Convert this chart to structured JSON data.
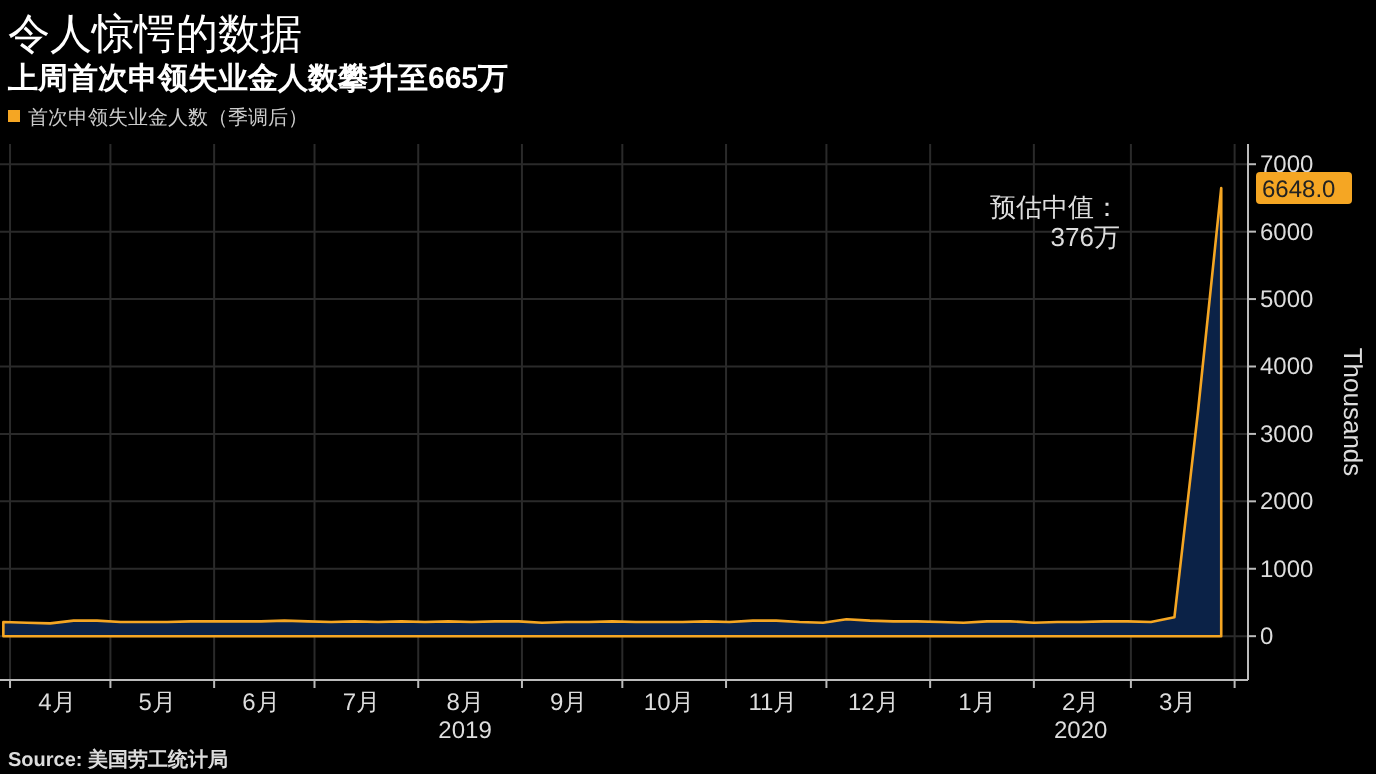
{
  "chart_data": {
    "type": "area",
    "title": "令人惊愕的数据",
    "subtitle": "上周首次申领失业金人数攀升至665万",
    "ylabel": "Thousands",
    "annotations": [
      "预估中值：\n376万",
      "Source: 美国劳工统计局"
    ],
    "x": [
      "2019-03-30",
      "2019-04-06",
      "2019-04-13",
      "2019-04-20",
      "2019-04-27",
      "2019-05-04",
      "2019-05-11",
      "2019-05-18",
      "2019-05-25",
      "2019-06-01",
      "2019-06-08",
      "2019-06-15",
      "2019-06-22",
      "2019-06-29",
      "2019-07-06",
      "2019-07-13",
      "2019-07-20",
      "2019-07-27",
      "2019-08-03",
      "2019-08-10",
      "2019-08-17",
      "2019-08-24",
      "2019-08-31",
      "2019-09-07",
      "2019-09-14",
      "2019-09-21",
      "2019-09-28",
      "2019-10-05",
      "2019-10-12",
      "2019-10-19",
      "2019-10-26",
      "2019-11-02",
      "2019-11-09",
      "2019-11-16",
      "2019-11-23",
      "2019-11-30",
      "2019-12-07",
      "2019-12-14",
      "2019-12-21",
      "2019-12-28",
      "2020-01-04",
      "2020-01-11",
      "2020-01-18",
      "2020-01-25",
      "2020-02-01",
      "2020-02-08",
      "2020-02-15",
      "2020-02-22",
      "2020-02-29",
      "2020-03-07",
      "2020-03-14",
      "2020-03-21",
      "2020-03-28"
    ],
    "series": [
      {
        "name": "首次申领失业金人数（季调后）",
        "color": "#f5a623",
        "values": [
          210,
          200,
          190,
          230,
          230,
          210,
          210,
          210,
          220,
          220,
          220,
          220,
          230,
          220,
          210,
          220,
          210,
          220,
          210,
          220,
          210,
          220,
          220,
          200,
          210,
          210,
          220,
          210,
          210,
          210,
          220,
          210,
          230,
          230,
          210,
          200,
          250,
          230,
          220,
          220,
          210,
          200,
          220,
          220,
          200,
          210,
          210,
          220,
          220,
          210,
          280,
          3310,
          6648
        ],
        "value_labels": [
          null,
          null,
          null,
          null,
          null,
          null,
          null,
          null,
          null,
          null,
          null,
          null,
          null,
          null,
          null,
          null,
          null,
          null,
          null,
          null,
          null,
          null,
          null,
          null,
          null,
          null,
          null,
          null,
          null,
          null,
          null,
          null,
          null,
          null,
          null,
          null,
          null,
          null,
          null,
          null,
          null,
          null,
          null,
          null,
          null,
          null,
          null,
          null,
          null,
          null,
          null,
          null,
          "6648.0"
        ]
      }
    ],
    "xlim": [
      "2019-03-29",
      "2020-04-05"
    ],
    "xticks": [
      {
        "value": "2019-04-01",
        "label": null
      },
      {
        "value": "2019-04-15",
        "label": "4月"
      },
      {
        "value": "2019-05-01",
        "label": null
      },
      {
        "value": "2019-05-15",
        "label": "5月"
      },
      {
        "value": "2019-06-01",
        "label": null
      },
      {
        "value": "2019-06-15",
        "label": "6月"
      },
      {
        "value": "2019-07-01",
        "label": null
      },
      {
        "value": "2019-07-15",
        "label": "7月"
      },
      {
        "value": "2019-08-01",
        "label": null
      },
      {
        "value": "2019-08-15",
        "label": "8月\n2019"
      },
      {
        "value": "2019-09-01",
        "label": null
      },
      {
        "value": "2019-09-15",
        "label": "9月"
      },
      {
        "value": "2019-10-01",
        "label": null
      },
      {
        "value": "2019-10-15",
        "label": "10月"
      },
      {
        "value": "2019-11-01",
        "label": null
      },
      {
        "value": "2019-11-15",
        "label": "11月"
      },
      {
        "value": "2019-12-01",
        "label": null
      },
      {
        "value": "2019-12-15",
        "label": "12月"
      },
      {
        "value": "2020-01-01",
        "label": null
      },
      {
        "value": "2020-01-15",
        "label": "1月"
      },
      {
        "value": "2020-02-01",
        "label": null
      },
      {
        "value": "2020-02-15",
        "label": "2月\n2020"
      },
      {
        "value": "2020-03-01",
        "label": null
      },
      {
        "value": "2020-03-15",
        "label": "3月"
      },
      {
        "value": "2020-04-01",
        "label": null
      }
    ],
    "ylim": [
      -650,
      7300
    ],
    "yticks": [
      0,
      1000,
      2000,
      3000,
      4000,
      5000,
      6000,
      7000
    ],
    "grid": true,
    "legend": "top left"
  }
}
